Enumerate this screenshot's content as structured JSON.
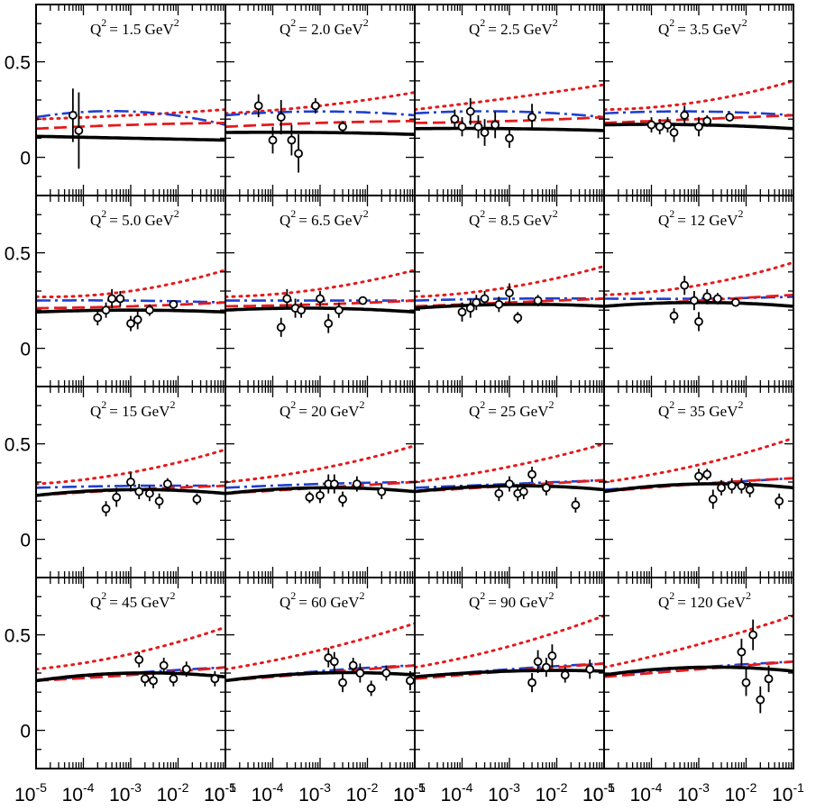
{
  "chart_data": {
    "type": "scatter",
    "layout": "4x4 grid of panels sharing axes",
    "xscale": "log",
    "xlim": [
      1e-05,
      0.1
    ],
    "ylim": [
      -0.2,
      0.8
    ],
    "xticks": [
      1e-05,
      0.0001,
      0.001,
      0.01,
      0.1
    ],
    "x_tick_base": "10",
    "x_tick_exponents": [
      "-5",
      "-4",
      "-3",
      "-2",
      "-1"
    ],
    "yticks": [
      0,
      0.5
    ],
    "ytick_labels": [
      "0",
      "0.5"
    ],
    "series_styles": [
      {
        "name": "data",
        "style": "open circles with vertical error bars",
        "color": "#000000"
      },
      {
        "name": "curve-solid",
        "style": "solid thick line",
        "color": "#000000"
      },
      {
        "name": "curve-dashed",
        "style": "dashed line",
        "color": "#e41a1c"
      },
      {
        "name": "curve-dashdot",
        "style": "dash-dot line",
        "color": "#1f3fcf"
      },
      {
        "name": "curve-dotted",
        "style": "dotted line",
        "color": "#e41a1c"
      }
    ],
    "panels": [
      {
        "label": "Q",
        "sup": "2",
        "value": "= 1.5 GeV",
        "curves": {
          "solid": [
            0.11,
            0.1,
            0.09
          ],
          "dashed": [
            0.15,
            0.17,
            0.18
          ],
          "dotdash": [
            0.21,
            0.24,
            0.17
          ],
          "dotted": [
            0.2,
            0.22,
            0.25
          ]
        },
        "data": [
          {
            "x": 6e-05,
            "y": 0.22,
            "err": 0.14
          },
          {
            "x": 8e-05,
            "y": 0.14,
            "err": 0.2
          }
        ]
      },
      {
        "label": "Q",
        "sup": "2",
        "value": "= 2.0 GeV",
        "curves": {
          "solid": [
            0.13,
            0.13,
            0.12
          ],
          "dashed": [
            0.16,
            0.18,
            0.19
          ],
          "dotdash": [
            0.22,
            0.24,
            0.22
          ],
          "dotted": [
            0.23,
            0.27,
            0.34
          ]
        },
        "data": [
          {
            "x": 5e-05,
            "y": 0.27,
            "err": 0.06
          },
          {
            "x": 0.0001,
            "y": 0.09,
            "err": 0.07
          },
          {
            "x": 0.00015,
            "y": 0.21,
            "err": 0.09
          },
          {
            "x": 0.00025,
            "y": 0.09,
            "err": 0.08
          },
          {
            "x": 0.00035,
            "y": 0.02,
            "err": 0.1
          },
          {
            "x": 0.0008,
            "y": 0.27,
            "err": 0.04
          },
          {
            "x": 0.003,
            "y": 0.16,
            "err": 0.03
          }
        ]
      },
      {
        "label": "Q",
        "sup": "2",
        "value": "= 2.5 GeV",
        "curves": {
          "solid": [
            0.15,
            0.15,
            0.14
          ],
          "dashed": [
            0.18,
            0.19,
            0.21
          ],
          "dotdash": [
            0.23,
            0.24,
            0.21
          ],
          "dotted": [
            0.25,
            0.31,
            0.38
          ]
        },
        "data": [
          {
            "x": 7e-05,
            "y": 0.2,
            "err": 0.05
          },
          {
            "x": 0.0001,
            "y": 0.16,
            "err": 0.05
          },
          {
            "x": 0.00015,
            "y": 0.24,
            "err": 0.07
          },
          {
            "x": 0.00022,
            "y": 0.16,
            "err": 0.06
          },
          {
            "x": 0.0003,
            "y": 0.13,
            "err": 0.07
          },
          {
            "x": 0.0005,
            "y": 0.17,
            "err": 0.07
          },
          {
            "x": 0.001,
            "y": 0.1,
            "err": 0.05
          },
          {
            "x": 0.003,
            "y": 0.21,
            "err": 0.07
          }
        ]
      },
      {
        "label": "Q",
        "sup": "2",
        "value": "= 3.5 GeV",
        "curves": {
          "solid": [
            0.17,
            0.17,
            0.15
          ],
          "dashed": [
            0.18,
            0.2,
            0.22
          ],
          "dotdash": [
            0.23,
            0.24,
            0.22
          ],
          "dotted": [
            0.25,
            0.29,
            0.4
          ]
        },
        "data": [
          {
            "x": 0.0001,
            "y": 0.17,
            "err": 0.04
          },
          {
            "x": 0.00015,
            "y": 0.16,
            "err": 0.04
          },
          {
            "x": 0.00022,
            "y": 0.17,
            "err": 0.04
          },
          {
            "x": 0.0003,
            "y": 0.13,
            "err": 0.05
          },
          {
            "x": 0.0005,
            "y": 0.22,
            "err": 0.05
          },
          {
            "x": 0.001,
            "y": 0.16,
            "err": 0.05
          },
          {
            "x": 0.0015,
            "y": 0.19,
            "err": 0.03
          },
          {
            "x": 0.0045,
            "y": 0.21,
            "err": 0.02
          }
        ]
      },
      {
        "label": "Q",
        "sup": "2",
        "value": "= 5.0 GeV",
        "curves": {
          "solid": [
            0.19,
            0.2,
            0.19
          ],
          "dashed": [
            0.21,
            0.22,
            0.24
          ],
          "dotdash": [
            0.25,
            0.25,
            0.24
          ],
          "dotted": [
            0.27,
            0.3,
            0.41
          ]
        },
        "data": [
          {
            "x": 0.0002,
            "y": 0.16,
            "err": 0.04
          },
          {
            "x": 0.0003,
            "y": 0.2,
            "err": 0.04
          },
          {
            "x": 0.0004,
            "y": 0.26,
            "err": 0.05
          },
          {
            "x": 0.0006,
            "y": 0.26,
            "err": 0.04
          },
          {
            "x": 0.001,
            "y": 0.13,
            "err": 0.04
          },
          {
            "x": 0.0014,
            "y": 0.15,
            "err": 0.05
          },
          {
            "x": 0.0025,
            "y": 0.2,
            "err": 0.03
          },
          {
            "x": 0.008,
            "y": 0.23,
            "err": 0.02
          }
        ]
      },
      {
        "label": "Q",
        "sup": "2",
        "value": "= 6.5 GeV",
        "curves": {
          "solid": [
            0.2,
            0.21,
            0.19
          ],
          "dashed": [
            0.22,
            0.23,
            0.25
          ],
          "dotdash": [
            0.25,
            0.25,
            0.25
          ],
          "dotted": [
            0.27,
            0.31,
            0.41
          ]
        },
        "data": [
          {
            "x": 0.00015,
            "y": 0.11,
            "err": 0.05
          },
          {
            "x": 0.0002,
            "y": 0.26,
            "err": 0.05
          },
          {
            "x": 0.0003,
            "y": 0.21,
            "err": 0.05
          },
          {
            "x": 0.0004,
            "y": 0.2,
            "err": 0.04
          },
          {
            "x": 0.001,
            "y": 0.26,
            "err": 0.04
          },
          {
            "x": 0.0015,
            "y": 0.13,
            "err": 0.05
          },
          {
            "x": 0.0025,
            "y": 0.2,
            "err": 0.04
          },
          {
            "x": 0.008,
            "y": 0.25,
            "err": 0.02
          }
        ]
      },
      {
        "label": "Q",
        "sup": "2",
        "value": "= 8.5 GeV",
        "curves": {
          "solid": [
            0.21,
            0.23,
            0.22
          ],
          "dashed": [
            0.22,
            0.24,
            0.26
          ],
          "dotdash": [
            0.25,
            0.26,
            0.26
          ],
          "dotted": [
            0.27,
            0.32,
            0.43
          ]
        },
        "data": [
          {
            "x": 0.0001,
            "y": 0.19,
            "err": 0.05
          },
          {
            "x": 0.00015,
            "y": 0.21,
            "err": 0.05
          },
          {
            "x": 0.0002,
            "y": 0.24,
            "err": 0.04
          },
          {
            "x": 0.0003,
            "y": 0.26,
            "err": 0.04
          },
          {
            "x": 0.0006,
            "y": 0.23,
            "err": 0.04
          },
          {
            "x": 0.001,
            "y": 0.29,
            "err": 0.05
          },
          {
            "x": 0.0015,
            "y": 0.16,
            "err": 0.03
          },
          {
            "x": 0.004,
            "y": 0.25,
            "err": 0.03
          }
        ]
      },
      {
        "label": "Q",
        "sup": "2",
        "value": "= 12 GeV",
        "curves": {
          "solid": [
            0.22,
            0.24,
            0.22
          ],
          "dashed": [
            0.22,
            0.25,
            0.28
          ],
          "dotdash": [
            0.26,
            0.26,
            0.27
          ],
          "dotted": [
            0.28,
            0.33,
            0.45
          ]
        },
        "data": [
          {
            "x": 0.0003,
            "y": 0.17,
            "err": 0.04
          },
          {
            "x": 0.0005,
            "y": 0.33,
            "err": 0.05
          },
          {
            "x": 0.0008,
            "y": 0.25,
            "err": 0.05
          },
          {
            "x": 0.001,
            "y": 0.14,
            "err": 0.05
          },
          {
            "x": 0.0015,
            "y": 0.27,
            "err": 0.04
          },
          {
            "x": 0.0025,
            "y": 0.26,
            "err": 0.03
          },
          {
            "x": 0.006,
            "y": 0.24,
            "err": 0.02
          }
        ]
      },
      {
        "label": "Q",
        "sup": "2",
        "value": "= 15 GeV",
        "curves": {
          "solid": [
            0.23,
            0.26,
            0.24
          ],
          "dashed": [
            0.23,
            0.26,
            0.28
          ],
          "dotdash": [
            0.27,
            0.28,
            0.28
          ],
          "dotted": [
            0.29,
            0.35,
            0.47
          ]
        },
        "data": [
          {
            "x": 0.0003,
            "y": 0.16,
            "err": 0.04
          },
          {
            "x": 0.0005,
            "y": 0.22,
            "err": 0.05
          },
          {
            "x": 0.001,
            "y": 0.3,
            "err": 0.05
          },
          {
            "x": 0.0015,
            "y": 0.25,
            "err": 0.04
          },
          {
            "x": 0.0025,
            "y": 0.24,
            "err": 0.04
          },
          {
            "x": 0.004,
            "y": 0.2,
            "err": 0.04
          },
          {
            "x": 0.006,
            "y": 0.29,
            "err": 0.03
          },
          {
            "x": 0.025,
            "y": 0.21,
            "err": 0.03
          }
        ]
      },
      {
        "label": "Q",
        "sup": "2",
        "value": "= 20 GeV",
        "curves": {
          "solid": [
            0.24,
            0.27,
            0.25
          ],
          "dashed": [
            0.24,
            0.27,
            0.3
          ],
          "dotdash": [
            0.27,
            0.29,
            0.3
          ],
          "dotted": [
            0.3,
            0.37,
            0.49
          ]
        },
        "data": [
          {
            "x": 0.0006,
            "y": 0.22,
            "err": 0.03
          },
          {
            "x": 0.001,
            "y": 0.23,
            "err": 0.04
          },
          {
            "x": 0.0015,
            "y": 0.29,
            "err": 0.05
          },
          {
            "x": 0.002,
            "y": 0.29,
            "err": 0.05
          },
          {
            "x": 0.003,
            "y": 0.21,
            "err": 0.04
          },
          {
            "x": 0.006,
            "y": 0.29,
            "err": 0.04
          },
          {
            "x": 0.02,
            "y": 0.25,
            "err": 0.04
          }
        ]
      },
      {
        "label": "Q",
        "sup": "2",
        "value": "= 25 GeV",
        "curves": {
          "solid": [
            0.25,
            0.28,
            0.26
          ],
          "dashed": [
            0.25,
            0.28,
            0.31
          ],
          "dotdash": [
            0.27,
            0.29,
            0.31
          ],
          "dotted": [
            0.3,
            0.38,
            0.5
          ]
        },
        "data": [
          {
            "x": 0.0006,
            "y": 0.24,
            "err": 0.04
          },
          {
            "x": 0.001,
            "y": 0.29,
            "err": 0.04
          },
          {
            "x": 0.0015,
            "y": 0.24,
            "err": 0.04
          },
          {
            "x": 0.002,
            "y": 0.25,
            "err": 0.04
          },
          {
            "x": 0.003,
            "y": 0.34,
            "err": 0.04
          },
          {
            "x": 0.006,
            "y": 0.27,
            "err": 0.04
          },
          {
            "x": 0.025,
            "y": 0.18,
            "err": 0.04
          }
        ]
      },
      {
        "label": "Q",
        "sup": "2",
        "value": "= 35 GeV",
        "curves": {
          "solid": [
            0.25,
            0.29,
            0.27
          ],
          "dashed": [
            0.25,
            0.29,
            0.32
          ],
          "dotdash": [
            0.26,
            0.29,
            0.32
          ],
          "dotted": [
            0.3,
            0.39,
            0.53
          ]
        },
        "data": [
          {
            "x": 0.001,
            "y": 0.33,
            "err": 0.04
          },
          {
            "x": 0.0015,
            "y": 0.34,
            "err": 0.03
          },
          {
            "x": 0.002,
            "y": 0.21,
            "err": 0.05
          },
          {
            "x": 0.003,
            "y": 0.27,
            "err": 0.04
          },
          {
            "x": 0.005,
            "y": 0.28,
            "err": 0.04
          },
          {
            "x": 0.008,
            "y": 0.28,
            "err": 0.04
          },
          {
            "x": 0.012,
            "y": 0.26,
            "err": 0.04
          },
          {
            "x": 0.05,
            "y": 0.2,
            "err": 0.04
          }
        ]
      },
      {
        "label": "Q",
        "sup": "2",
        "value": "= 45 GeV",
        "curves": {
          "solid": [
            0.26,
            0.3,
            0.28
          ],
          "dashed": [
            0.26,
            0.29,
            0.33
          ],
          "dotdash": [
            0.26,
            0.3,
            0.33
          ],
          "dotted": [
            0.32,
            0.4,
            0.54
          ]
        },
        "data": [
          {
            "x": 0.0015,
            "y": 0.37,
            "err": 0.04
          },
          {
            "x": 0.002,
            "y": 0.27,
            "err": 0.04
          },
          {
            "x": 0.003,
            "y": 0.26,
            "err": 0.04
          },
          {
            "x": 0.005,
            "y": 0.34,
            "err": 0.04
          },
          {
            "x": 0.008,
            "y": 0.27,
            "err": 0.04
          },
          {
            "x": 0.015,
            "y": 0.32,
            "err": 0.04
          },
          {
            "x": 0.06,
            "y": 0.27,
            "err": 0.04
          }
        ]
      },
      {
        "label": "Q",
        "sup": "2",
        "value": "= 60 GeV",
        "curves": {
          "solid": [
            0.26,
            0.3,
            0.29
          ],
          "dashed": [
            0.26,
            0.3,
            0.34
          ],
          "dotdash": [
            0.26,
            0.31,
            0.34
          ],
          "dotted": [
            0.32,
            0.42,
            0.56
          ]
        },
        "data": [
          {
            "x": 0.0015,
            "y": 0.38,
            "err": 0.05
          },
          {
            "x": 0.002,
            "y": 0.36,
            "err": 0.05
          },
          {
            "x": 0.003,
            "y": 0.25,
            "err": 0.05
          },
          {
            "x": 0.005,
            "y": 0.34,
            "err": 0.04
          },
          {
            "x": 0.007,
            "y": 0.3,
            "err": 0.05
          },
          {
            "x": 0.012,
            "y": 0.22,
            "err": 0.04
          },
          {
            "x": 0.025,
            "y": 0.3,
            "err": 0.04
          },
          {
            "x": 0.08,
            "y": 0.26,
            "err": 0.05
          }
        ]
      },
      {
        "label": "Q",
        "sup": "2",
        "value": "= 90 GeV",
        "curves": {
          "solid": [
            0.28,
            0.31,
            0.31
          ],
          "dashed": [
            0.27,
            0.31,
            0.35
          ],
          "dotdash": [
            0.28,
            0.32,
            0.35
          ],
          "dotted": [
            0.33,
            0.44,
            0.6
          ]
        },
        "data": [
          {
            "x": 0.003,
            "y": 0.25,
            "err": 0.05
          },
          {
            "x": 0.004,
            "y": 0.36,
            "err": 0.06
          },
          {
            "x": 0.006,
            "y": 0.33,
            "err": 0.05
          },
          {
            "x": 0.008,
            "y": 0.39,
            "err": 0.06
          },
          {
            "x": 0.015,
            "y": 0.29,
            "err": 0.04
          },
          {
            "x": 0.05,
            "y": 0.32,
            "err": 0.05
          }
        ]
      },
      {
        "label": "Q",
        "sup": "2",
        "value": "= 120 GeV",
        "curves": {
          "solid": [
            0.29,
            0.33,
            0.31
          ],
          "dashed": [
            0.28,
            0.32,
            0.36
          ],
          "dotdash": [
            0.29,
            0.33,
            0.36
          ],
          "dotted": [
            0.33,
            0.45,
            0.6
          ]
        },
        "data": [
          {
            "x": 0.008,
            "y": 0.41,
            "err": 0.07
          },
          {
            "x": 0.01,
            "y": 0.25,
            "err": 0.07
          },
          {
            "x": 0.014,
            "y": 0.5,
            "err": 0.08
          },
          {
            "x": 0.02,
            "y": 0.16,
            "err": 0.07
          },
          {
            "x": 0.03,
            "y": 0.27,
            "err": 0.07
          }
        ]
      }
    ]
  }
}
